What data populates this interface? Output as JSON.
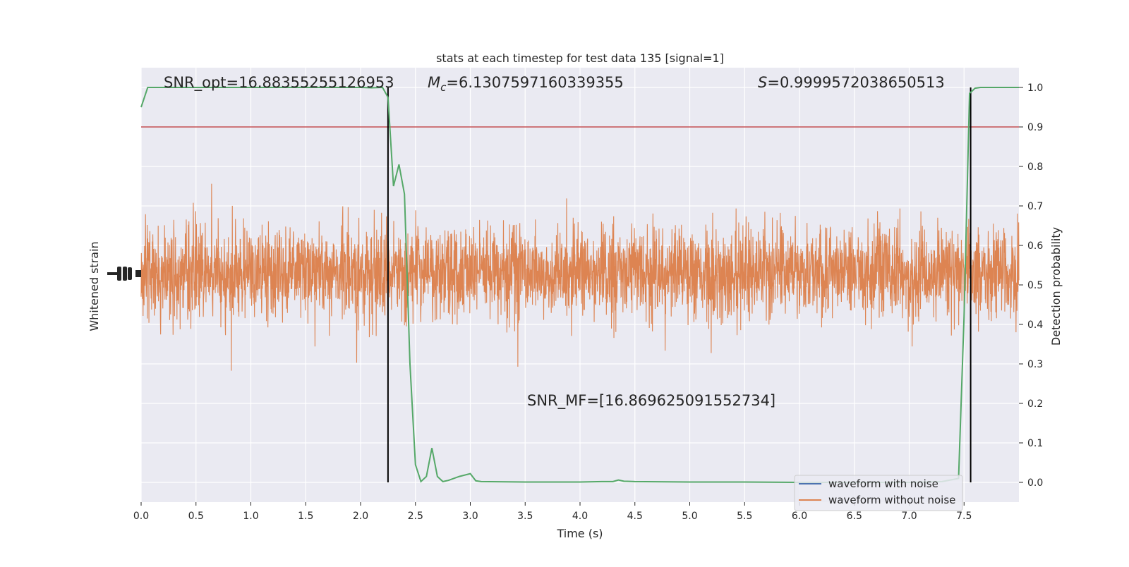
{
  "chart_data": {
    "type": "line",
    "title": "stats at each timestep for test data 135 [signal=1]",
    "xlabel": "Time (s)",
    "ylabel_left": "Whitened strain",
    "ylabel_right": "Detection probability",
    "xlim": [
      0.0,
      8.0
    ],
    "ylim_right": [
      -0.05,
      1.05
    ],
    "x_ticks": [
      "0.0",
      "0.5",
      "1.0",
      "1.5",
      "2.0",
      "2.5",
      "3.0",
      "3.5",
      "4.0",
      "4.5",
      "5.0",
      "5.5",
      "6.0",
      "6.5",
      "7.0",
      "7.5"
    ],
    "y_ticks_right": [
      "0.0",
      "0.1",
      "0.2",
      "0.3",
      "0.4",
      "0.5",
      "0.6",
      "0.7",
      "0.8",
      "0.9",
      "1.0"
    ],
    "grid": true,
    "legend_position": "lower-right",
    "annotations": {
      "snr_opt": "SNR_opt=16.88355255126953",
      "mc_symbol": "M",
      "mc_subscript": "c",
      "mc_value": "=6.1307597160339355",
      "s_symbol": "S",
      "s_value": "=0.9999572038650513",
      "snr_mf": "SNR_MF=[16.869625091552734]"
    },
    "threshold": {
      "value": 0.9,
      "color": "#c44e52"
    },
    "signal_window": [
      2.25,
      7.56
    ],
    "series": [
      {
        "name": "waveform with noise",
        "color": "#4c72b0",
        "kind": "strain"
      },
      {
        "name": "waveform without noise",
        "color": "#dd8452",
        "kind": "strain"
      },
      {
        "color": "#55a868",
        "kind": "probability",
        "x": [
          0.0,
          0.06,
          0.1,
          0.5,
          1.0,
          1.5,
          2.0,
          2.1,
          2.2,
          2.25,
          2.3,
          2.35,
          2.4,
          2.45,
          2.5,
          2.55,
          2.6,
          2.65,
          2.7,
          2.75,
          2.8,
          2.9,
          3.0,
          3.05,
          3.1,
          3.5,
          4.0,
          4.2,
          4.3,
          4.35,
          4.4,
          4.5,
          5.0,
          5.5,
          6.0,
          6.5,
          7.0,
          7.3,
          7.45,
          7.5,
          7.55,
          7.6,
          7.65,
          7.7,
          7.75,
          8.0
        ],
        "y": [
          0.95,
          1.0,
          1.0,
          1.0,
          1.0,
          1.0,
          1.0,
          0.999,
          1.0,
          0.975,
          0.75,
          0.805,
          0.73,
          0.3,
          0.045,
          0.002,
          0.015,
          0.087,
          0.015,
          0.002,
          0.005,
          0.015,
          0.022,
          0.004,
          0.002,
          0.001,
          0.001,
          0.002,
          0.002,
          0.006,
          0.003,
          0.002,
          0.001,
          0.001,
          0.0,
          0.0,
          0.0,
          0.002,
          0.01,
          0.42,
          0.985,
          0.998,
          1.0,
          1.0,
          1.0,
          1.0
        ]
      }
    ]
  }
}
